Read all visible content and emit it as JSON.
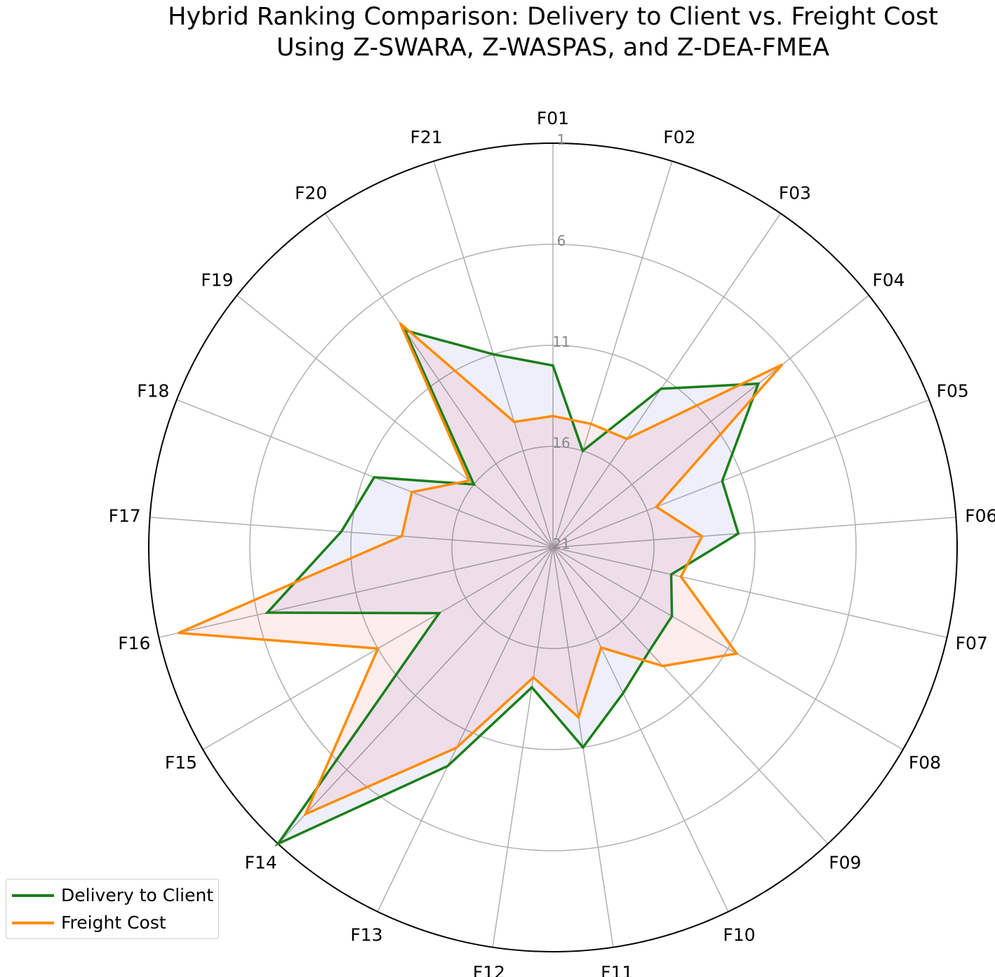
{
  "chart_data": {
    "type": "radar",
    "title_line1": "Hybrid Ranking Comparison: Delivery to Client vs. Freight Cost",
    "title_line2": "Using Z-SWARA, Z-WASPAS, and Z-DEA-FMEA",
    "categories": [
      "F01",
      "F02",
      "F03",
      "F04",
      "F05",
      "F06",
      "F07",
      "F08",
      "F09",
      "F10",
      "F11",
      "F12",
      "F13",
      "F14",
      "F15",
      "F16",
      "F17",
      "F18",
      "F19",
      "F20",
      "F21"
    ],
    "radial_ticks": [
      "1",
      "6",
      "11",
      "16",
      "21"
    ],
    "radial_tick_values": [
      1,
      6,
      11,
      16,
      21
    ],
    "radial_range": [
      21,
      1
    ],
    "inverted_radius": true,
    "grid": true,
    "legend_position": "bottom-left",
    "series": [
      {
        "name": "Delivery to Client",
        "color": "#1a7f1a",
        "fill": "#e5e5fa",
        "values": [
          12,
          16,
          11.5,
          8,
          12,
          11.8,
          15,
          14.2,
          14,
          13,
          11,
          14,
          9,
          1,
          14.5,
          6.5,
          10.5,
          11.5,
          16,
          8,
          11
        ]
      },
      {
        "name": "Freight Cost",
        "color": "#ff8c00",
        "fill": "#fde1e1",
        "values": [
          14.5,
          14.6,
          14.5,
          6.5,
          15.5,
          13.6,
          14.5,
          10.5,
          13,
          15.5,
          12.5,
          14.5,
          10,
          3,
          11,
          2,
          13.5,
          13.5,
          15.7,
          7.6,
          14.5
        ]
      }
    ]
  }
}
